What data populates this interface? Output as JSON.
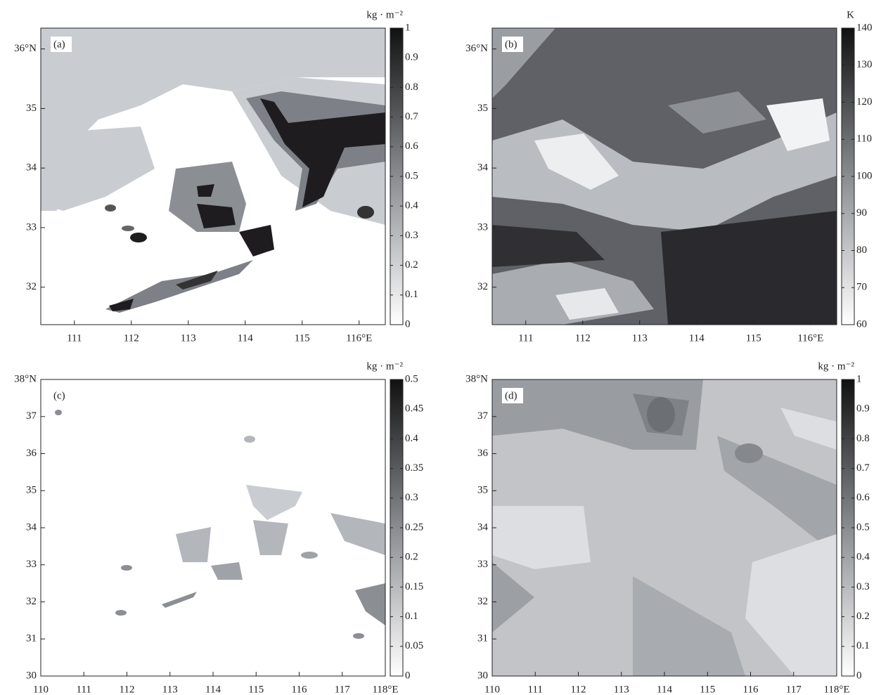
{
  "chart_data": [
    {
      "type": "contour",
      "label": "(a)",
      "unit": "kg · m⁻²",
      "xlim": [
        110.41,
        116.46
      ],
      "xticks": [
        111,
        112,
        113,
        114,
        115,
        {
          "value": 116,
          "label": "116°E"
        }
      ],
      "ylim": [
        31.37,
        36.35
      ],
      "yticks": [
        32,
        33,
        34,
        35,
        {
          "value": 36,
          "label": "36°N"
        }
      ],
      "clim": [
        0,
        1
      ],
      "cticks": [
        0,
        0.1,
        0.2,
        0.3,
        0.4,
        0.5,
        0.6,
        0.7,
        0.8,
        0.9,
        1
      ]
    },
    {
      "type": "contour",
      "label": "(b)",
      "unit": "K",
      "xlim": [
        110.41,
        116.46
      ],
      "xticks": [
        111,
        112,
        113,
        114,
        115,
        {
          "value": 116,
          "label": "116°E"
        }
      ],
      "ylim": [
        31.37,
        36.35
      ],
      "yticks": [
        32,
        33,
        34,
        35,
        {
          "value": 36,
          "label": "36°N"
        }
      ],
      "clim": [
        60,
        140
      ],
      "cticks": [
        60,
        70,
        80,
        90,
        100,
        110,
        120,
        130,
        140
      ]
    },
    {
      "type": "contour",
      "label": "(c)",
      "unit": "kg · m⁻²",
      "xlim": [
        110,
        118
      ],
      "xticks": [
        110,
        111,
        112,
        113,
        114,
        115,
        116,
        117,
        {
          "value": 118,
          "label": "118°E"
        }
      ],
      "ylim": [
        30,
        38
      ],
      "yticks": [
        30,
        31,
        32,
        33,
        34,
        35,
        36,
        37,
        {
          "value": 38,
          "label": "38°N"
        }
      ],
      "clim": [
        0,
        0.5
      ],
      "cticks": [
        0,
        0.05,
        0.1,
        0.15,
        0.2,
        0.25,
        0.3,
        0.35,
        0.4,
        0.45,
        0.5
      ]
    },
    {
      "type": "contour",
      "label": "(d)",
      "unit": "kg · m⁻²",
      "xlim": [
        110,
        118
      ],
      "xticks": [
        110,
        111,
        112,
        113,
        114,
        115,
        116,
        117,
        {
          "value": 118,
          "label": "118°E"
        }
      ],
      "ylim": [
        30,
        38
      ],
      "yticks": [
        30,
        31,
        32,
        33,
        34,
        35,
        36,
        37,
        {
          "value": 38,
          "label": "38°N"
        }
      ],
      "clim": [
        0,
        1
      ],
      "cticks": [
        0,
        0.1,
        0.2,
        0.3,
        0.4,
        0.5,
        0.6,
        0.7,
        0.8,
        0.9,
        1
      ]
    }
  ]
}
